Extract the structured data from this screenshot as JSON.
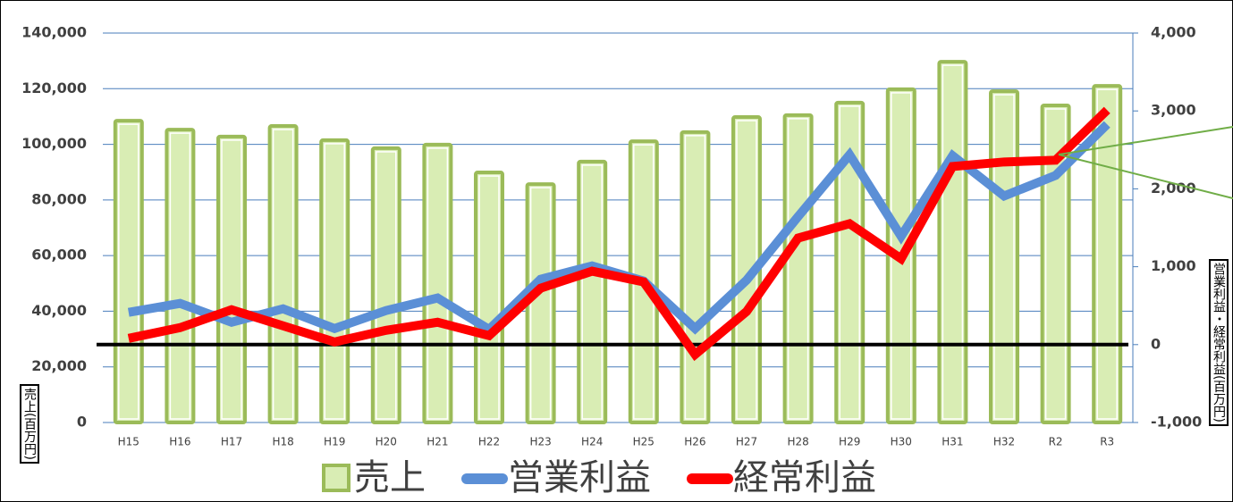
{
  "chart_data": {
    "type": "bar_line",
    "categories": [
      "H15",
      "H16",
      "H17",
      "H18",
      "H19",
      "H20",
      "H21",
      "H22",
      "H23",
      "H24",
      "H25",
      "H26",
      "H27",
      "H28",
      "H29",
      "H30",
      "H31",
      "H32",
      "R2",
      "R3"
    ],
    "series": [
      {
        "name": "売上",
        "type": "bar",
        "axis": "y",
        "color": "#9bbb59",
        "fill": "#d9edb4",
        "values": [
          108500,
          105300,
          102800,
          106600,
          101500,
          98600,
          99900,
          89900,
          85700,
          93800,
          101100,
          104400,
          109800,
          110500,
          115000,
          119800,
          129700,
          119100,
          114000,
          121000
        ]
      },
      {
        "name": "営業利益",
        "type": "line",
        "axis": "y2",
        "color": "#5b8fd6",
        "values": [
          414,
          529,
          287,
          460,
          207,
          437,
          598,
          195,
          839,
          1011,
          816,
          207,
          828,
          1644,
          2437,
          1391,
          2425,
          1908,
          2172,
          2828
        ]
      },
      {
        "name": "経常利益",
        "type": "line",
        "axis": "y2",
        "color": "#ff0000",
        "values": [
          80,
          218,
          448,
          241,
          34,
          184,
          287,
          115,
          724,
          943,
          805,
          -126,
          425,
          1368,
          1552,
          1103,
          2287,
          2345,
          2368,
          3011
        ]
      }
    ],
    "ylim": [
      0,
      140000
    ],
    "yticks": [
      0,
      {
        "value": 20000,
        "label": "20,000"
      },
      {
        "value": 40000,
        "label": "40,000"
      },
      {
        "value": 60000,
        "label": "60,000"
      },
      {
        "value": 80000,
        "label": "80,000"
      },
      {
        "value": 100000,
        "label": "100,000"
      },
      {
        "value": 120000,
        "label": "120,000"
      },
      {
        "value": 140000,
        "label": "140,000"
      }
    ],
    "y2lim": [
      -1000,
      4000
    ],
    "y2ticks": [
      {
        "value": -1000,
        "label": "-1,000"
      },
      0,
      {
        "value": 1000,
        "label": "1,000"
      },
      {
        "value": 2000,
        "label": "2,000"
      },
      {
        "value": 3000,
        "label": "3,000"
      },
      {
        "value": 4000,
        "label": "4,000"
      }
    ],
    "y_label": "売上(百万円)",
    "y2_label": "営業利益・経常利益(百万円)",
    "hline": {
      "axis": "y2",
      "value": 0,
      "color": "#000000"
    },
    "grid": true
  }
}
